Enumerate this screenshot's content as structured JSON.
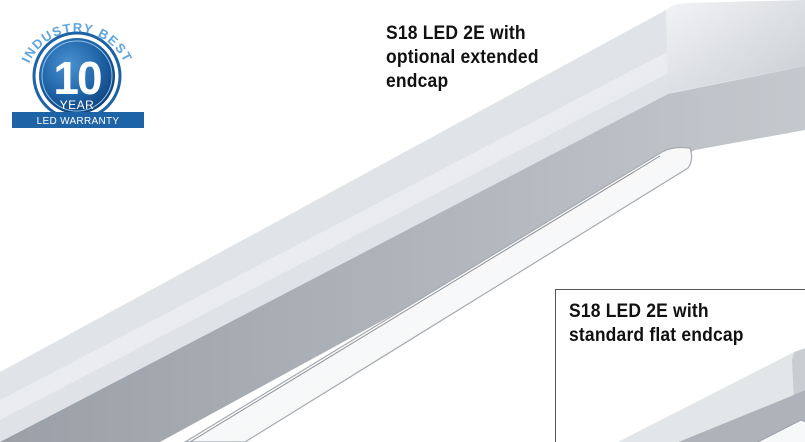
{
  "badge": {
    "arc_text": "INDUSTRY BEST",
    "number": "10",
    "year": "YEAR",
    "ribbon": "LED WARRANTY",
    "colors": {
      "blue": "#1e63a6",
      "dark_blue": "#0f3f76",
      "light_blue": "#5fa6dd"
    }
  },
  "captions": {
    "extended": [
      "S18 LED 2E with",
      "optional extended",
      "endcap"
    ],
    "flat": [
      "S18 LED 2E with",
      "standard flat endcap"
    ]
  },
  "colors": {
    "fixture_light": "#f4f5f7",
    "fixture_mid": "#d4d7dc",
    "fixture_dark": "#9ea3aa",
    "text": "#111111"
  }
}
